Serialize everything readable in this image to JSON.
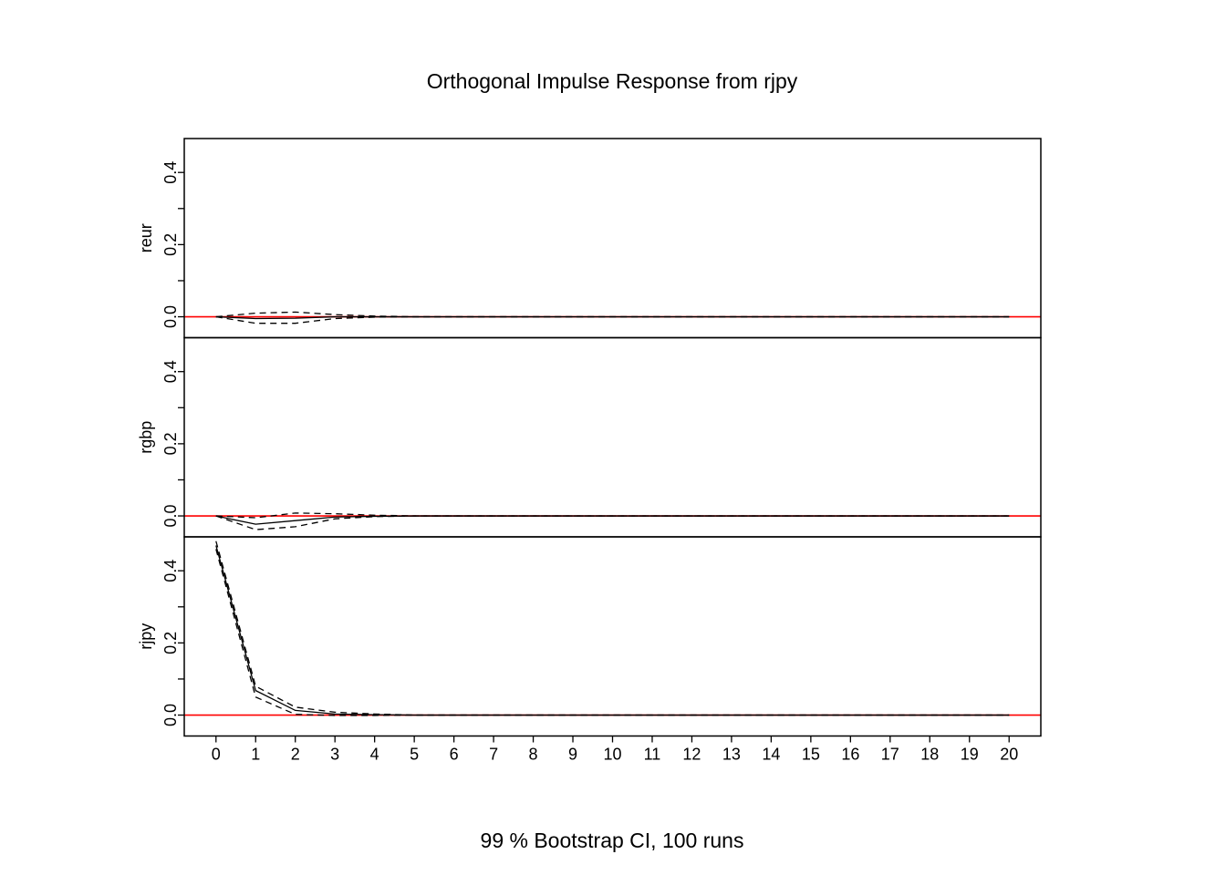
{
  "chart_data": {
    "type": "line",
    "title": "Orthogonal Impulse Response from rjpy",
    "xlabel": "99 % Bootstrap CI,  100 runs",
    "x": [
      0,
      1,
      2,
      3,
      4,
      5,
      6,
      7,
      8,
      9,
      10,
      11,
      12,
      13,
      14,
      15,
      16,
      17,
      18,
      19,
      20
    ],
    "x_tick_labels": [
      "0",
      "1",
      "2",
      "3",
      "4",
      "5",
      "6",
      "7",
      "8",
      "9",
      "10",
      "11",
      "12",
      "13",
      "14",
      "15",
      "16",
      "17",
      "18",
      "19",
      "20"
    ],
    "xlim": [
      -0.8,
      20.8
    ],
    "ylim": [
      -0.058,
      0.494
    ],
    "y_ticks": [
      0,
      0.1,
      0.2,
      0.3,
      0.4
    ],
    "y_tick_labels": [
      "0.0",
      "0.2",
      "0.4"
    ],
    "zero_line_color": "#ff0000",
    "panels": [
      {
        "name": "reur",
        "irf": [
          0,
          -0.005,
          -0.004,
          0.0,
          0.0,
          0,
          0,
          0,
          0,
          0,
          0,
          0,
          0,
          0,
          0,
          0,
          0,
          0,
          0,
          0,
          0
        ],
        "lower": [
          0,
          -0.018,
          -0.018,
          -0.005,
          -0.001,
          0,
          0,
          0,
          0,
          0,
          0,
          0,
          0,
          0,
          0,
          0,
          0,
          0,
          0,
          0,
          0
        ],
        "upper": [
          0,
          0.01,
          0.013,
          0.006,
          0.002,
          0,
          0,
          0,
          0,
          0,
          0,
          0,
          0,
          0,
          0,
          0,
          0,
          0,
          0,
          0,
          0
        ]
      },
      {
        "name": "rgbp",
        "irf": [
          0,
          -0.023,
          -0.013,
          -0.003,
          -0.001,
          0,
          0,
          0,
          0,
          0,
          0,
          0,
          0,
          0,
          0,
          0,
          0,
          0,
          0,
          0,
          0
        ],
        "lower": [
          0,
          -0.038,
          -0.03,
          -0.008,
          -0.002,
          0,
          0,
          0,
          0,
          0,
          0,
          0,
          0,
          0,
          0,
          0,
          0,
          0,
          0,
          0,
          0
        ],
        "upper": [
          0,
          -0.005,
          0.008,
          0.006,
          0.002,
          0,
          0,
          0,
          0,
          0,
          0,
          0,
          0,
          0,
          0,
          0,
          0,
          0,
          0,
          0,
          0
        ]
      },
      {
        "name": "rjpy",
        "irf": [
          0.47,
          0.068,
          0.013,
          0.003,
          0.001,
          0,
          0,
          0,
          0,
          0,
          0,
          0,
          0,
          0,
          0,
          0,
          0,
          0,
          0,
          0,
          0
        ],
        "lower": [
          0.46,
          0.05,
          0.002,
          -0.001,
          -0.001,
          0,
          0,
          0,
          0,
          0,
          0,
          0,
          0,
          0,
          0,
          0,
          0,
          0,
          0,
          0,
          0
        ],
        "upper": [
          0.482,
          0.08,
          0.022,
          0.008,
          0.003,
          0,
          0,
          0,
          0,
          0,
          0,
          0,
          0,
          0,
          0,
          0,
          0,
          0,
          0,
          0,
          0
        ]
      }
    ]
  }
}
